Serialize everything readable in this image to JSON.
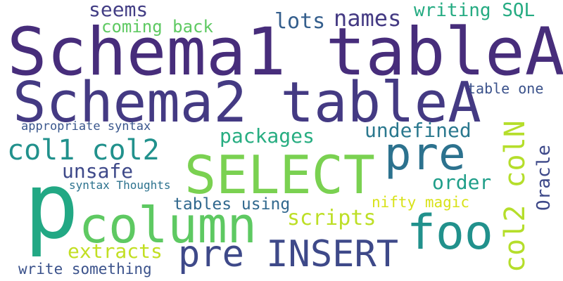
{
  "cloud": {
    "words": [
      {
        "text": "Schema1 tableA",
        "color": "#472d7b"
      },
      {
        "text": "Schema2 tableA",
        "color": "#443a83"
      },
      {
        "text": "SELECT",
        "color": "#7ad151"
      },
      {
        "text": "p",
        "color": "#22a884"
      },
      {
        "text": "column",
        "color": "#5ec962"
      },
      {
        "text": "pre INSERT",
        "color": "#3e4989"
      },
      {
        "text": "foo",
        "color": "#21918c"
      },
      {
        "text": "pre",
        "color": "#2c728e"
      },
      {
        "text": "col2 colN",
        "color": "#b5de2b"
      },
      {
        "text": "col1 col2",
        "color": "#21918c"
      },
      {
        "text": "seems",
        "color": "#433e85"
      },
      {
        "text": "coming back",
        "color": "#5ec962"
      },
      {
        "text": "lots",
        "color": "#355f8d"
      },
      {
        "text": "names",
        "color": "#443a83"
      },
      {
        "text": "writing SQL",
        "color": "#25ab82"
      },
      {
        "text": "table one",
        "color": "#3b528b"
      },
      {
        "text": "appropriate syntax",
        "color": "#39568c"
      },
      {
        "text": "packages",
        "color": "#27ad81"
      },
      {
        "text": "undefined",
        "color": "#2a788e"
      },
      {
        "text": "unsafe",
        "color": "#3e4989"
      },
      {
        "text": "order",
        "color": "#1f9e89"
      },
      {
        "text": "syntax Thoughts",
        "color": "#2c728e"
      },
      {
        "text": "tables using",
        "color": "#31688e"
      },
      {
        "text": "nifty magic",
        "color": "#d8e219"
      },
      {
        "text": "scripts",
        "color": "#bddf26"
      },
      {
        "text": "extracts",
        "color": "#c2df23"
      },
      {
        "text": "write something",
        "color": "#3b528b"
      },
      {
        "text": "Oracle",
        "color": "#3e4989"
      }
    ]
  }
}
